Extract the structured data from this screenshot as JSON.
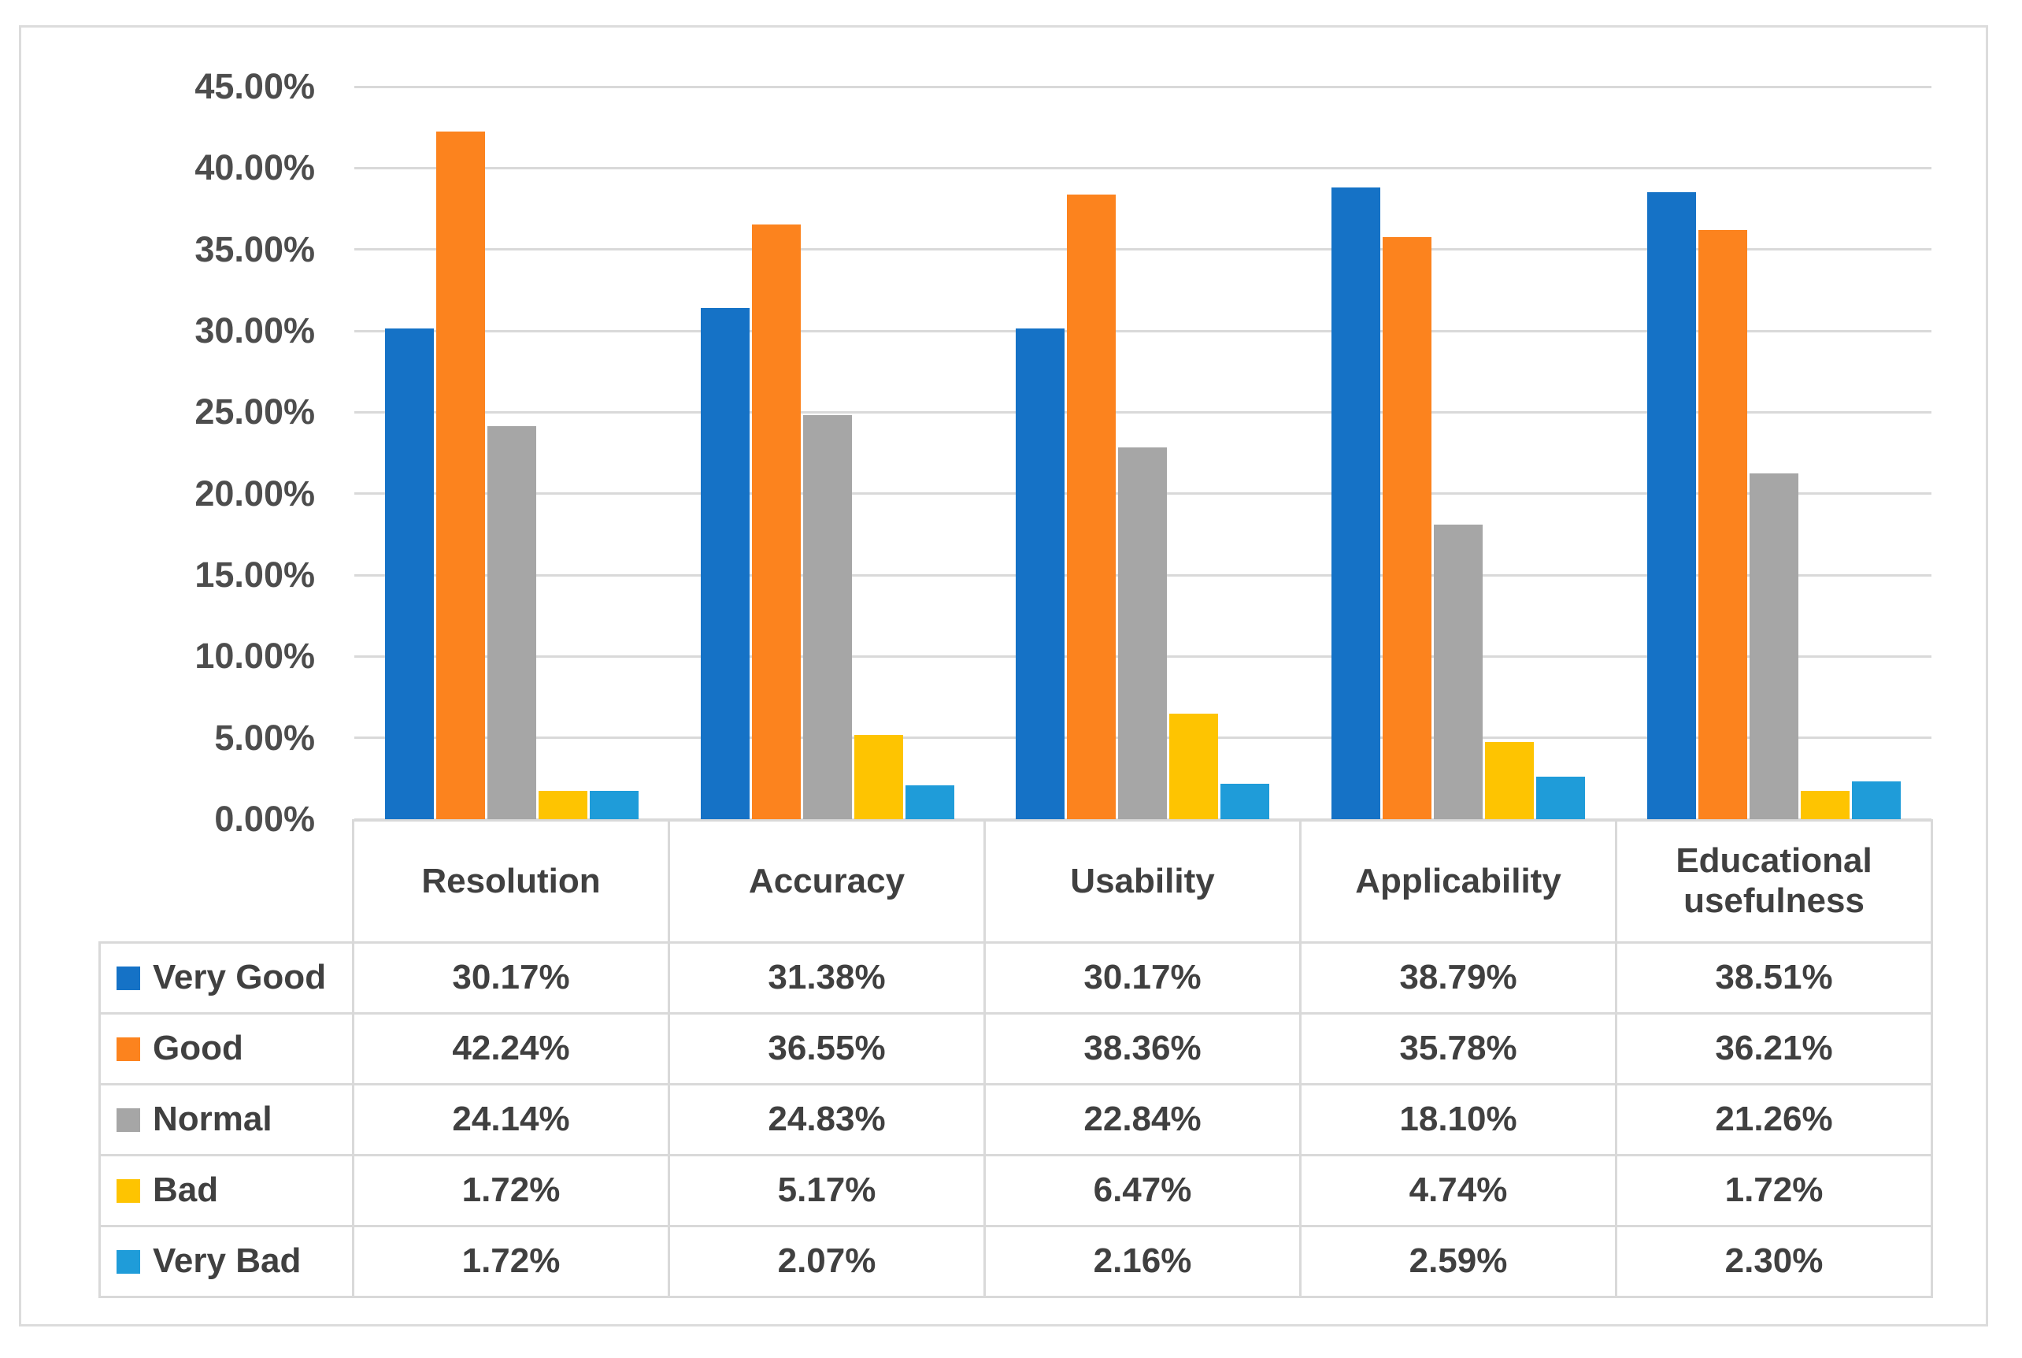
{
  "chart_data": {
    "type": "bar",
    "title": "",
    "xlabel": "",
    "ylabel": "",
    "grid": true,
    "legend_position": "data-table-left-column",
    "categories": [
      "Resolution",
      "Accuracy",
      "Usability",
      "Applicability",
      "Educational usefulness"
    ],
    "series": [
      {
        "name": "Very Good",
        "color": "#1572C6",
        "values": [
          30.17,
          31.38,
          30.17,
          38.79,
          38.51
        ]
      },
      {
        "name": "Good",
        "color": "#FC831E",
        "values": [
          42.24,
          36.55,
          38.36,
          35.78,
          36.21
        ]
      },
      {
        "name": "Normal",
        "color": "#A6A6A6",
        "values": [
          24.14,
          24.83,
          22.84,
          18.1,
          21.26
        ]
      },
      {
        "name": "Bad",
        "color": "#FEC401",
        "values": [
          1.72,
          5.17,
          6.47,
          4.74,
          1.72
        ]
      },
      {
        "name": "Very Bad",
        "color": "#1F9CD9",
        "values": [
          1.72,
          2.07,
          2.16,
          2.59,
          2.3
        ]
      }
    ],
    "y_axis": {
      "min": 0,
      "max": 45,
      "step": 5,
      "ticks": [
        "0.00%",
        "5.00%",
        "10.00%",
        "15.00%",
        "20.00%",
        "25.00%",
        "30.00%",
        "35.00%",
        "40.00%",
        "45.00%"
      ]
    }
  },
  "table": {
    "columns": [
      "Resolution",
      "Accuracy",
      "Usability",
      "Applicability",
      "Educational usefulness"
    ],
    "rows": [
      {
        "label": "Very Good",
        "cells": [
          "30.17%",
          "31.38%",
          "30.17%",
          "38.79%",
          "38.51%"
        ]
      },
      {
        "label": "Good",
        "cells": [
          "42.24%",
          "36.55%",
          "38.36%",
          "35.78%",
          "36.21%"
        ]
      },
      {
        "label": "Normal",
        "cells": [
          "24.14%",
          "24.83%",
          "22.84%",
          "18.10%",
          "21.26%"
        ]
      },
      {
        "label": "Bad",
        "cells": [
          "1.72%",
          "5.17%",
          "6.47%",
          "4.74%",
          "1.72%"
        ]
      },
      {
        "label": "Very Bad",
        "cells": [
          "1.72%",
          "2.07%",
          "2.16%",
          "2.59%",
          "2.30%"
        ]
      }
    ]
  },
  "colors": {
    "background": "#FFFFFF",
    "frame_border": "#DCDCDC",
    "gridline": "#D9D9D9",
    "table_border": "#D9D9D9",
    "axis_text": "#4D4D4D",
    "table_text": "#404040"
  }
}
